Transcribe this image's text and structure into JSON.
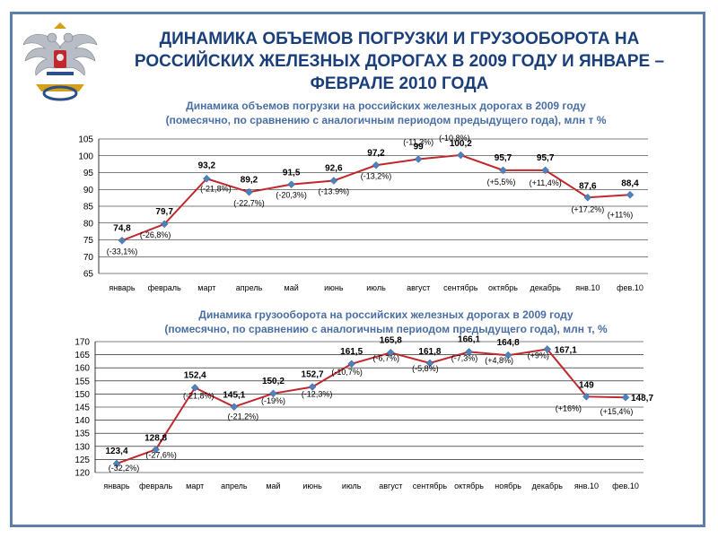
{
  "page": {
    "title_line1": "ДИНАМИКА ОБЪЕМОВ ПОГРУЗКИ И ГРУЗООБОРОТА НА",
    "title_line2": "РОССИЙСКИХ ЖЕЛЕЗНЫХ ДОРОГАХ В 2009 ГОДУ И ЯНВАРЕ –",
    "title_line3": "ФЕВРАЛЕ 2010 ГОДА"
  },
  "colors": {
    "line": "#c0282d",
    "marker": "#4f81bd",
    "title": "#1a3f7a",
    "subtitle": "#4a6fa5",
    "frame": "#5b7fa8"
  },
  "chart_data": [
    {
      "type": "line",
      "title_line1": "Динамика объемов погрузки на российских железных дорогах в 2009 году",
      "title_line2": "(помесячно, по сравнению с аналогичным периодом предыдущего года), млн т %",
      "categories": [
        "январь",
        "февраль",
        "март",
        "апрель",
        "май",
        "июнь",
        "июль",
        "август",
        "сентябрь",
        "октябрь",
        "декабрь",
        "янв.10",
        "фев.10"
      ],
      "values": [
        74.8,
        79.7,
        93.2,
        89.2,
        91.5,
        92.6,
        97.2,
        99,
        100.2,
        95.7,
        95.7,
        87.6,
        88.4
      ],
      "value_labels": [
        "74,8",
        "79,7",
        "93,2",
        "89,2",
        "91,5",
        "92,6",
        "97,2",
        "99",
        "100,2",
        "95,7",
        "95,7",
        "87,6",
        "88,4"
      ],
      "change_labels": [
        "(-33,1%)",
        "(-26,8%)",
        "(-21,8%)",
        "(-22,7%)",
        "(-20,3%)",
        "(-13.9%)",
        "(-13,2%)",
        "(-11,3%)",
        "(-10,8%)",
        "(+5,5%)",
        "(+11,4%)",
        "(+17,2%)",
        "(+11%)"
      ],
      "ylim": [
        65,
        105
      ],
      "yticks": [
        65,
        70,
        75,
        80,
        85,
        90,
        95,
        100,
        105
      ],
      "grid": true
    },
    {
      "type": "line",
      "title_line1": "Динамика грузооборота на российских железных дорогах в 2009 году",
      "title_line2": "(помесячно, по сравнению с аналогичным периодом предыдущего года), млн т, %",
      "categories": [
        "январь",
        "февраль",
        "март",
        "апрель",
        "май",
        "июнь",
        "июль",
        "август",
        "сентябрь",
        "октябрь",
        "ноябрь",
        "декабрь",
        "янв.10",
        "фев.10"
      ],
      "values": [
        123.4,
        128.8,
        152.4,
        145.1,
        150.2,
        152.7,
        161.5,
        165.8,
        161.8,
        166.1,
        164.8,
        167.1,
        149,
        148.7
      ],
      "value_labels": [
        "123,4",
        "128,8",
        "152,4",
        "145,1",
        "150,2",
        "152,7",
        "161,5",
        "165,8",
        "161,8",
        "166,1",
        "164,8",
        "167,1",
        "149",
        "148,7"
      ],
      "change_labels": [
        "(-32,2%)",
        "(-27,6%)",
        "(-21,8%)",
        "(-21,2%)",
        "(-19%)",
        "(-12,3%)",
        "(-10,7%)",
        "(-6,7%)",
        "(-5,8%)",
        "(-7,3%)",
        "(+4,8%)",
        "(+9%)",
        "(+16%)",
        "(+15,4%)"
      ],
      "ylim": [
        120,
        170
      ],
      "yticks": [
        120,
        125,
        130,
        135,
        140,
        145,
        150,
        155,
        160,
        165,
        170
      ],
      "grid": true
    }
  ]
}
